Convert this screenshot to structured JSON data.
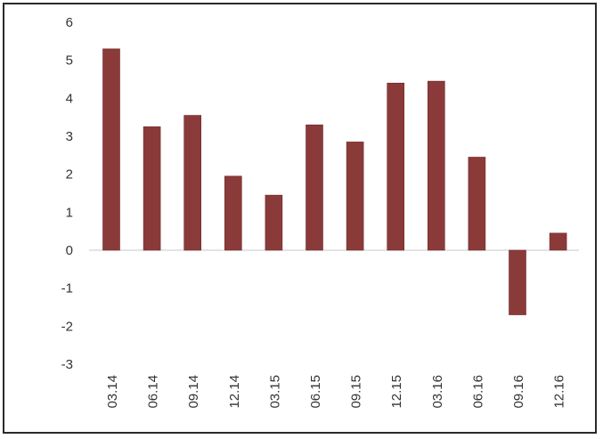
{
  "chart_data": {
    "type": "bar",
    "categories": [
      "03.14",
      "06.14",
      "09.14",
      "12.14",
      "03.15",
      "06.15",
      "09.15",
      "12.15",
      "03.16",
      "06.16",
      "09.16",
      "12.16"
    ],
    "values": [
      5.3,
      3.25,
      3.55,
      1.95,
      1.45,
      3.3,
      2.85,
      4.4,
      4.45,
      2.45,
      -1.7,
      0.45
    ],
    "ylim": [
      -3,
      6
    ],
    "yticks": [
      "-3",
      "-2",
      "-1",
      "0",
      "1",
      "2",
      "3",
      "4",
      "5",
      "6"
    ],
    "title": "",
    "xlabel": "",
    "ylabel": "",
    "grid": false,
    "legend": "none",
    "bar_color": "#8b3a3a"
  }
}
